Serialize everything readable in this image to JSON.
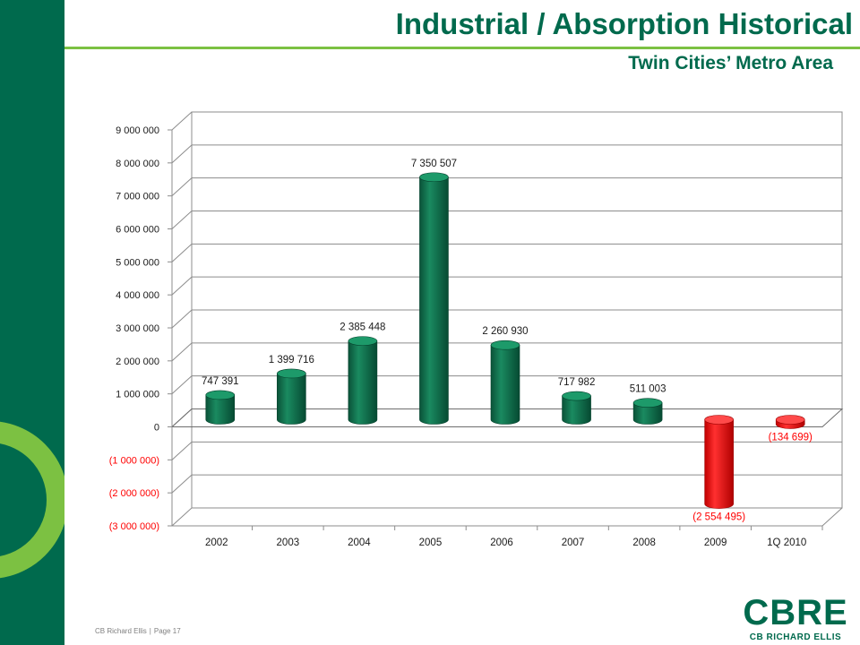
{
  "header": {
    "title": "Industrial / Absorption Historical",
    "subtitle": "Twin Cities’ Metro Area"
  },
  "footer": {
    "company": "CB Richard Ellis",
    "separator": "|",
    "page": "Page 17"
  },
  "logo": {
    "wordmark": "CBRE",
    "tagline": "CB RICHARD ELLIS"
  },
  "colors": {
    "brand_green": "#006a4d",
    "accent_green": "#7cc142",
    "positive_bar": "#0d6e4c",
    "negative_bar": "#ee1111",
    "negative_label": "#ff0000"
  },
  "chart_data": {
    "type": "bar",
    "categories": [
      "2002",
      "2003",
      "2004",
      "2005",
      "2006",
      "2007",
      "2008",
      "2009",
      "1Q 2010"
    ],
    "values": [
      747391,
      1399716,
      2385448,
      7350507,
      2260930,
      717982,
      511003,
      -2554495,
      -134699
    ],
    "data_labels": [
      "747 391",
      "1 399 716",
      "2 385 448",
      "7 350 507",
      "2 260 930",
      "717 982",
      "511 003",
      "(2 554 495)",
      "(134 699)"
    ],
    "y_ticks": [
      9000000,
      8000000,
      7000000,
      6000000,
      5000000,
      4000000,
      3000000,
      2000000,
      1000000,
      0,
      -1000000,
      -2000000,
      -3000000
    ],
    "y_tick_labels": [
      "9 000 000",
      "8 000 000",
      "7 000 000",
      "6 000 000",
      "5 000 000",
      "4 000 000",
      "3 000 000",
      "2 000 000",
      "1 000 000",
      "0",
      "(1 000 000)",
      "(2 000 000)",
      "(3 000 000)"
    ],
    "ylim": [
      -3000000,
      9000000
    ],
    "grid": true,
    "legend": "none",
    "title": "",
    "xlabel": "",
    "ylabel": ""
  }
}
